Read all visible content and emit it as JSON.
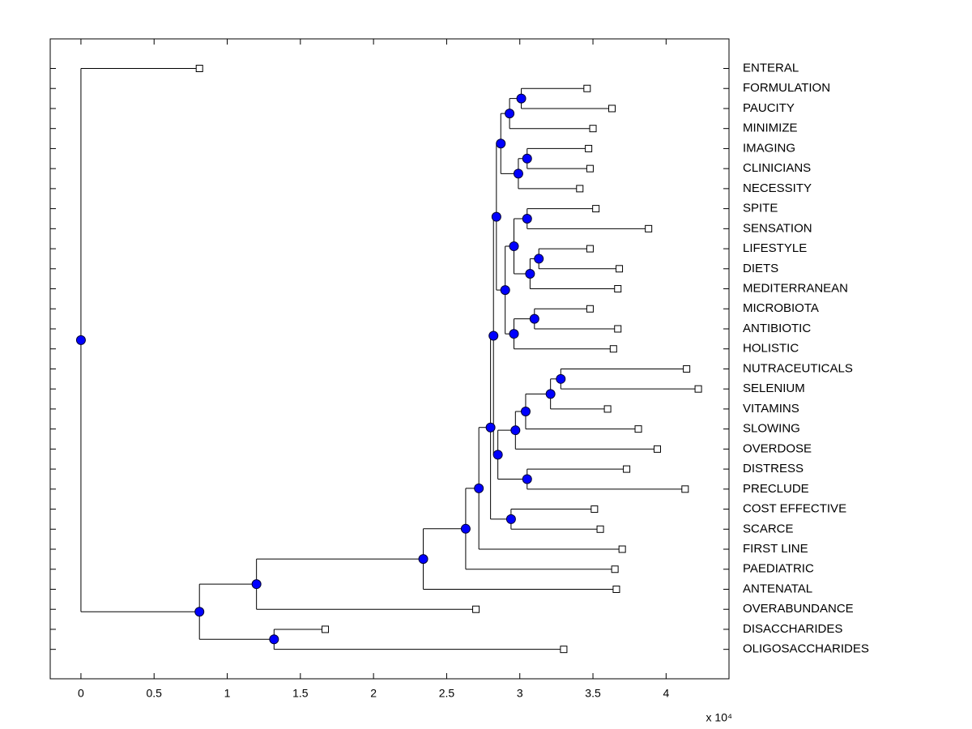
{
  "chart_data": {
    "type": "dendrogram",
    "x_multiplier": "x 10⁴",
    "xlim": [
      -0.21,
      4.43
    ],
    "xticks": [
      0,
      0.5,
      1,
      1.5,
      2,
      2.5,
      3,
      3.5,
      4
    ],
    "node_color": "#0000ff",
    "tree": {
      "x": 0,
      "children": [
        {
          "label": "ENTERAL",
          "x": 0.81
        },
        {
          "x": 0.81,
          "children": [
            {
              "x": 1.2,
              "children": [
                {
                  "x": 2.34,
                  "children": [
                    {
                      "x": 2.63,
                      "children": [
                        {
                          "x": 2.72,
                          "children": [
                            {
                              "x": 2.8,
                              "children": [
                                {
                                  "x": 2.82,
                                  "children": [
                                    {
                                      "x": 2.84,
                                      "children": [
                                        {
                                          "x": 2.87,
                                          "children": [
                                            {
                                              "x": 2.93,
                                              "children": [
                                                {
                                                  "x": 3.01,
                                                  "children": [
                                                    {
                                                      "label": "FORMULATION",
                                                      "x": 3.46
                                                    },
                                                    {
                                                      "label": "PAUCITY",
                                                      "x": 3.63
                                                    }
                                                  ]
                                                },
                                                {
                                                  "label": "MINIMIZE",
                                                  "x": 3.5
                                                }
                                              ]
                                            },
                                            {
                                              "x": 2.99,
                                              "children": [
                                                {
                                                  "x": 3.05,
                                                  "children": [
                                                    {
                                                      "label": "IMAGING",
                                                      "x": 3.47
                                                    },
                                                    {
                                                      "label": "CLINICIANS",
                                                      "x": 3.48
                                                    }
                                                  ]
                                                },
                                                {
                                                  "label": "NECESSITY",
                                                  "x": 3.41
                                                }
                                              ]
                                            }
                                          ]
                                        },
                                        {
                                          "x": 2.9,
                                          "children": [
                                            {
                                              "x": 2.96,
                                              "children": [
                                                {
                                                  "x": 3.05,
                                                  "children": [
                                                    {
                                                      "label": "SPITE",
                                                      "x": 3.52
                                                    },
                                                    {
                                                      "label": "SENSATION",
                                                      "x": 3.88
                                                    }
                                                  ]
                                                },
                                                {
                                                  "x": 3.07,
                                                  "children": [
                                                    {
                                                      "x": 3.13,
                                                      "children": [
                                                        {
                                                          "label": "LIFESTYLE",
                                                          "x": 3.48
                                                        },
                                                        {
                                                          "label": "DIETS",
                                                          "x": 3.68
                                                        }
                                                      ]
                                                    },
                                                    {
                                                      "label": "MEDITERRANEAN",
                                                      "x": 3.67
                                                    }
                                                  ]
                                                }
                                              ]
                                            },
                                            {
                                              "x": 2.96,
                                              "children": [
                                                {
                                                  "x": 3.1,
                                                  "children": [
                                                    {
                                                      "label": "MICROBIOTA",
                                                      "x": 3.48
                                                    },
                                                    {
                                                      "label": "ANTIBIOTIC",
                                                      "x": 3.67
                                                    }
                                                  ]
                                                },
                                                {
                                                  "label": "HOLISTIC",
                                                  "x": 3.64
                                                }
                                              ]
                                            }
                                          ]
                                        }
                                      ]
                                    },
                                    {
                                      "x": 2.85,
                                      "children": [
                                        {
                                          "x": 2.97,
                                          "children": [
                                            {
                                              "x": 3.04,
                                              "children": [
                                                {
                                                  "x": 3.21,
                                                  "children": [
                                                    {
                                                      "x": 3.28,
                                                      "children": [
                                                        {
                                                          "label": "NUTRACEUTICALS",
                                                          "x": 4.14
                                                        },
                                                        {
                                                          "label": "SELENIUM",
                                                          "x": 4.22
                                                        }
                                                      ]
                                                    },
                                                    {
                                                      "label": "VITAMINS",
                                                      "x": 3.6
                                                    }
                                                  ]
                                                },
                                                {
                                                  "label": "SLOWING",
                                                  "x": 3.81
                                                }
                                              ]
                                            },
                                            {
                                              "label": "OVERDOSE",
                                              "x": 3.94
                                            }
                                          ]
                                        },
                                        {
                                          "x": 3.05,
                                          "children": [
                                            {
                                              "label": "DISTRESS",
                                              "x": 3.73
                                            },
                                            {
                                              "label": "PRECLUDE",
                                              "x": 4.13
                                            }
                                          ]
                                        }
                                      ]
                                    }
                                  ]
                                },
                                {
                                  "x": 2.94,
                                  "children": [
                                    {
                                      "label": "COST EFFECTIVE",
                                      "x": 3.51
                                    },
                                    {
                                      "label": "SCARCE",
                                      "x": 3.55
                                    }
                                  ]
                                }
                              ]
                            },
                            {
                              "label": "FIRST LINE",
                              "x": 3.7
                            }
                          ]
                        },
                        {
                          "label": "PAEDIATRIC",
                          "x": 3.65
                        }
                      ]
                    },
                    {
                      "label": "ANTENATAL",
                      "x": 3.66
                    }
                  ]
                },
                {
                  "label": "OVERABUNDANCE",
                  "x": 2.7
                }
              ]
            },
            {
              "x": 1.32,
              "children": [
                {
                  "label": "DISACCHARIDES",
                  "x": 1.67
                },
                {
                  "label": "OLIGOSACCHARIDES",
                  "x": 3.3
                }
              ]
            }
          ]
        }
      ]
    }
  }
}
